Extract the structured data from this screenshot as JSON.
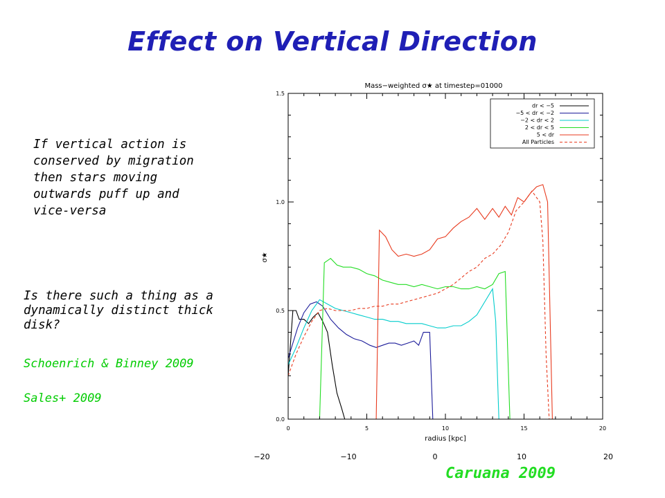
{
  "slide": {
    "title": "Effect on Vertical Direction",
    "paragraph1": " If vertical action is\nconserved by migration\n then stars moving\n outwards puff up and\n vice-versa",
    "paragraph2": "Is there such a thing as a\ndynamically distinct thick\ndisk?",
    "reference1": "Schoenrich & Binney 2009",
    "reference2": "Sales+ 2009",
    "credit": "Caruana 2009",
    "colors": {
      "title": "#1f1fb5",
      "references": "#00cc00",
      "credit": "#22dd22"
    }
  },
  "chart_data": {
    "type": "line",
    "title": "Mass−weighted σ★ at timestep=01000",
    "xlabel": "radius [kpc]",
    "ylabel": "σ★",
    "xlim": [
      0,
      20
    ],
    "ylim": [
      0,
      1.5
    ],
    "x_ticks": [
      "0",
      "5",
      "10",
      "15",
      "20"
    ],
    "y_ticks": [
      "0.0",
      "0.5",
      "1.0",
      "1.5"
    ],
    "outer_x_ticks": [
      "−20",
      "−10",
      "0",
      "10",
      "20"
    ],
    "legend_position": "top-right",
    "series": [
      {
        "name": "dr < −5",
        "color": "#000000",
        "style": "solid",
        "points": [
          [
            0,
            0.2
          ],
          [
            0.3,
            0.5
          ],
          [
            0.5,
            0.5
          ],
          [
            0.7,
            0.46
          ],
          [
            1.0,
            0.46
          ],
          [
            1.3,
            0.44
          ],
          [
            1.6,
            0.47
          ],
          [
            1.9,
            0.49
          ],
          [
            2.2,
            0.45
          ],
          [
            2.5,
            0.4
          ],
          [
            2.8,
            0.25
          ],
          [
            3.1,
            0.12
          ],
          [
            3.4,
            0.05
          ],
          [
            3.6,
            0
          ]
        ]
      },
      {
        "name": "−5 < dr < −2",
        "color": "#1a1a99",
        "style": "solid",
        "points": [
          [
            0,
            0.28
          ],
          [
            0.3,
            0.35
          ],
          [
            0.6,
            0.42
          ],
          [
            1.0,
            0.49
          ],
          [
            1.4,
            0.53
          ],
          [
            1.8,
            0.54
          ],
          [
            2.2,
            0.52
          ],
          [
            2.7,
            0.46
          ],
          [
            3.2,
            0.42
          ],
          [
            3.7,
            0.39
          ],
          [
            4.2,
            0.37
          ],
          [
            4.7,
            0.36
          ],
          [
            5.2,
            0.34
          ],
          [
            5.6,
            0.33
          ],
          [
            6.0,
            0.34
          ],
          [
            6.4,
            0.35
          ],
          [
            6.8,
            0.35
          ],
          [
            7.2,
            0.34
          ],
          [
            7.6,
            0.35
          ],
          [
            8.0,
            0.36
          ],
          [
            8.3,
            0.34
          ],
          [
            8.6,
            0.4
          ],
          [
            9.0,
            0.4
          ],
          [
            9.2,
            0
          ]
        ]
      },
      {
        "name": "−2 < dr < 2",
        "color": "#00cccc",
        "style": "solid",
        "points": [
          [
            0,
            0.25
          ],
          [
            0.5,
            0.33
          ],
          [
            1.0,
            0.42
          ],
          [
            1.5,
            0.5
          ],
          [
            2.0,
            0.55
          ],
          [
            2.5,
            0.53
          ],
          [
            3.0,
            0.51
          ],
          [
            3.5,
            0.5
          ],
          [
            4.0,
            0.49
          ],
          [
            4.5,
            0.48
          ],
          [
            5.0,
            0.47
          ],
          [
            5.5,
            0.46
          ],
          [
            6.0,
            0.46
          ],
          [
            6.5,
            0.45
          ],
          [
            7.0,
            0.45
          ],
          [
            7.5,
            0.44
          ],
          [
            8.0,
            0.44
          ],
          [
            8.5,
            0.44
          ],
          [
            9.0,
            0.43
          ],
          [
            9.5,
            0.42
          ],
          [
            10.0,
            0.42
          ],
          [
            10.5,
            0.43
          ],
          [
            11.0,
            0.43
          ],
          [
            11.5,
            0.45
          ],
          [
            12.0,
            0.48
          ],
          [
            12.5,
            0.54
          ],
          [
            13.0,
            0.6
          ],
          [
            13.2,
            0.45
          ],
          [
            13.4,
            0
          ]
        ]
      },
      {
        "name": "2 < dr < 5",
        "color": "#22dd22",
        "style": "solid",
        "points": [
          [
            2.0,
            0
          ],
          [
            2.3,
            0.72
          ],
          [
            2.7,
            0.74
          ],
          [
            3.1,
            0.71
          ],
          [
            3.5,
            0.7
          ],
          [
            4.0,
            0.7
          ],
          [
            4.5,
            0.69
          ],
          [
            5.0,
            0.67
          ],
          [
            5.5,
            0.66
          ],
          [
            6.0,
            0.64
          ],
          [
            6.5,
            0.63
          ],
          [
            7.0,
            0.62
          ],
          [
            7.5,
            0.62
          ],
          [
            8.0,
            0.61
          ],
          [
            8.5,
            0.62
          ],
          [
            9.0,
            0.61
          ],
          [
            9.5,
            0.6
          ],
          [
            10.0,
            0.61
          ],
          [
            10.5,
            0.61
          ],
          [
            11.0,
            0.6
          ],
          [
            11.5,
            0.6
          ],
          [
            12.0,
            0.61
          ],
          [
            12.5,
            0.6
          ],
          [
            13.0,
            0.62
          ],
          [
            13.4,
            0.67
          ],
          [
            13.8,
            0.68
          ],
          [
            14.1,
            0
          ]
        ]
      },
      {
        "name": "5 < dr",
        "color": "#e83a1e",
        "style": "solid",
        "points": [
          [
            5.6,
            0
          ],
          [
            5.8,
            0.87
          ],
          [
            6.2,
            0.84
          ],
          [
            6.6,
            0.78
          ],
          [
            7.0,
            0.75
          ],
          [
            7.5,
            0.76
          ],
          [
            8.0,
            0.75
          ],
          [
            8.5,
            0.76
          ],
          [
            9.0,
            0.78
          ],
          [
            9.5,
            0.83
          ],
          [
            10.0,
            0.84
          ],
          [
            10.5,
            0.88
          ],
          [
            11.0,
            0.91
          ],
          [
            11.5,
            0.93
          ],
          [
            12.0,
            0.97
          ],
          [
            12.5,
            0.92
          ],
          [
            13.0,
            0.97
          ],
          [
            13.4,
            0.93
          ],
          [
            13.8,
            0.98
          ],
          [
            14.2,
            0.94
          ],
          [
            14.6,
            1.02
          ],
          [
            15.0,
            1.0
          ],
          [
            15.4,
            1.04
          ],
          [
            15.8,
            1.07
          ],
          [
            16.2,
            1.08
          ],
          [
            16.5,
            1.0
          ],
          [
            16.8,
            0
          ]
        ]
      },
      {
        "name": "All Particles",
        "color": "#e83a1e",
        "style": "dashed",
        "points": [
          [
            0,
            0.2
          ],
          [
            0.5,
            0.3
          ],
          [
            1.0,
            0.38
          ],
          [
            1.5,
            0.45
          ],
          [
            2.0,
            0.5
          ],
          [
            2.5,
            0.51
          ],
          [
            3.0,
            0.5
          ],
          [
            3.5,
            0.5
          ],
          [
            4.0,
            0.5
          ],
          [
            4.5,
            0.51
          ],
          [
            5.0,
            0.51
          ],
          [
            5.5,
            0.52
          ],
          [
            6.0,
            0.52
          ],
          [
            6.5,
            0.53
          ],
          [
            7.0,
            0.53
          ],
          [
            7.5,
            0.54
          ],
          [
            8.0,
            0.55
          ],
          [
            8.5,
            0.56
          ],
          [
            9.0,
            0.57
          ],
          [
            9.5,
            0.58
          ],
          [
            10.0,
            0.6
          ],
          [
            10.5,
            0.62
          ],
          [
            11.0,
            0.65
          ],
          [
            11.5,
            0.68
          ],
          [
            12.0,
            0.7
          ],
          [
            12.5,
            0.74
          ],
          [
            13.0,
            0.76
          ],
          [
            13.5,
            0.8
          ],
          [
            14.0,
            0.86
          ],
          [
            14.5,
            0.96
          ],
          [
            15.0,
            1.0
          ],
          [
            15.5,
            1.05
          ],
          [
            16.0,
            1.0
          ],
          [
            16.2,
            0.82
          ],
          [
            16.4,
            0.3
          ],
          [
            16.6,
            0
          ]
        ]
      }
    ]
  }
}
